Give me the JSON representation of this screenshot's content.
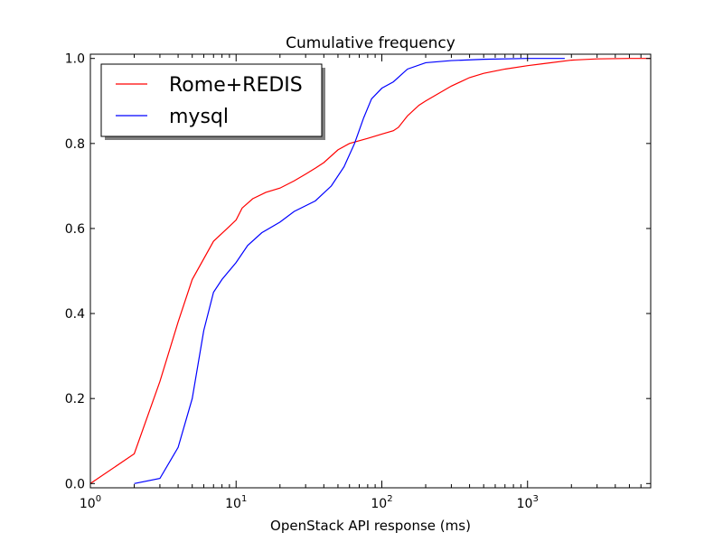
{
  "chart_data": {
    "type": "line",
    "title": "Cumulative frequency",
    "xlabel": "OpenStack API response (ms)",
    "ylabel": "",
    "xscale": "log",
    "xlim": [
      1,
      7000
    ],
    "ylim": [
      -0.01,
      1.01
    ],
    "xticks": [
      {
        "value": 1,
        "base": "10",
        "exp": "0"
      },
      {
        "value": 10,
        "base": "10",
        "exp": "1"
      },
      {
        "value": 100,
        "base": "10",
        "exp": "2"
      },
      {
        "value": 1000,
        "base": "10",
        "exp": "3"
      }
    ],
    "yticks": [
      {
        "value": 0.0,
        "label": "0.0"
      },
      {
        "value": 0.2,
        "label": "0.2"
      },
      {
        "value": 0.4,
        "label": "0.4"
      },
      {
        "value": 0.6,
        "label": "0.6"
      },
      {
        "value": 0.8,
        "label": "0.8"
      },
      {
        "value": 1.0,
        "label": "1.0"
      }
    ],
    "legend_position": "top-left",
    "grid": false,
    "series": [
      {
        "name": "Rome+REDIS",
        "color": "#ff0000",
        "x": [
          1,
          2,
          3,
          4,
          5,
          7,
          9,
          10,
          11,
          13,
          16,
          20,
          25,
          30,
          35,
          40,
          50,
          60,
          80,
          100,
          120,
          130,
          150,
          180,
          200,
          300,
          400,
          500,
          700,
          1000,
          1300,
          2000,
          3000,
          5000,
          7000
        ],
        "y": [
          0.0,
          0.07,
          0.24,
          0.38,
          0.48,
          0.57,
          0.605,
          0.62,
          0.648,
          0.67,
          0.685,
          0.695,
          0.712,
          0.728,
          0.742,
          0.755,
          0.785,
          0.8,
          0.812,
          0.822,
          0.83,
          0.838,
          0.865,
          0.89,
          0.9,
          0.935,
          0.955,
          0.965,
          0.975,
          0.983,
          0.988,
          0.996,
          0.999,
          1.0,
          1.0
        ]
      },
      {
        "name": "mysql",
        "color": "#0000ff",
        "x": [
          2,
          3,
          4,
          5,
          6,
          7,
          8,
          10,
          12,
          15,
          20,
          25,
          35,
          45,
          55,
          65,
          75,
          85,
          100,
          120,
          150,
          200,
          300,
          500,
          1000,
          1800
        ],
        "y": [
          0.0,
          0.012,
          0.085,
          0.2,
          0.36,
          0.45,
          0.48,
          0.52,
          0.56,
          0.59,
          0.615,
          0.64,
          0.665,
          0.7,
          0.745,
          0.8,
          0.86,
          0.905,
          0.93,
          0.945,
          0.975,
          0.99,
          0.995,
          0.998,
          1.0,
          1.0
        ]
      }
    ]
  }
}
